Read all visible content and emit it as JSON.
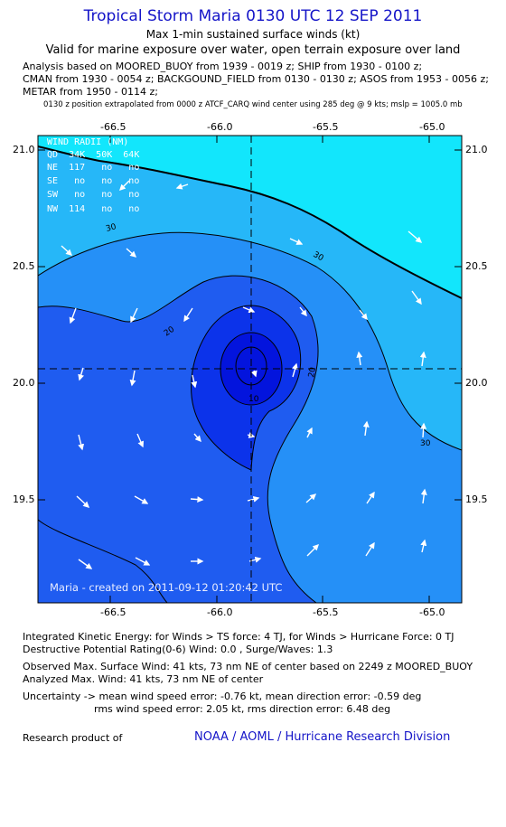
{
  "header": {
    "title": "Tropical Storm Maria 0130 UTC 12 SEP 2011",
    "subtitle": "Max 1-min sustained surface winds (kt)",
    "valid": "Valid for marine exposure over water, open terrain exposure over land",
    "analysis_lines": [
      "Analysis based on MOORED_BUOY from 1939 - 0019 z; SHIP from 1930 - 0100 z;",
      "CMAN from 1930 - 0054 z; BACKGOUND_FIELD from 0130 - 0130 z; ASOS from 1953 - 0056 z;",
      "METAR from 1950 - 0114 z;"
    ],
    "position_note": "0130 z position extrapolated from 0000 z ATCF_CARQ wind center using 285 deg @ 9 kts; mslp = 1005.0 mb"
  },
  "map": {
    "x_ticks": [
      "-66.5",
      "-66.0",
      "-65.5",
      "-65.0"
    ],
    "y_ticks": [
      "21.0",
      "20.5",
      "20.0",
      "19.5"
    ],
    "center": {
      "lon": -65.8,
      "lat": 20.06
    },
    "contour_labels": [
      "30",
      "30",
      "20",
      "20",
      "30",
      "10"
    ],
    "colors": {
      "lt20": "#1f5cf0",
      "20_30": "#2590f7",
      "30_34": "#26b7f8",
      "gt34": "#12e6fc",
      "core1": "#0c33ea",
      "core2": "#0314dd",
      "arrow": "#ffffff",
      "contour": "#000000"
    },
    "wind_radii": {
      "header": "WIND RADII (NM)",
      "columns": "QD  34K  50K  64K",
      "rows": [
        "NE  117   no   no",
        "SE   no   no   no",
        "SW   no   no   no",
        "NW  114   no   no"
      ]
    },
    "footer": "Maria - created on 2011-09-12 01:20:42 UTC"
  },
  "stats": {
    "ike": "Integrated Kinetic Energy:  for Winds > TS force: 4 TJ,  for Winds > Hurricane Force: 0 TJ",
    "dpr": "Destructive Potential Rating(0-6)   Wind: 0.0 , Surge/Waves: 1.3",
    "observed_max": "Observed Max. Surface Wind: 41 kts, 73 nm NE of center based on 2249 z MOORED_BUOY",
    "analyzed_max": "Analyzed Max. Wind: 41 kts, 73 nm NE of center",
    "uncertainty_1": "Uncertainty -> mean wind speed error:  -0.76 kt,   mean direction error:  -0.59 deg",
    "uncertainty_2": "rms wind speed error: 2.05 kt,   rms direction error: 6.48 deg"
  },
  "credit": {
    "label": "Research product of",
    "link": "NOAA / AOML / Hurricane Research Division"
  }
}
